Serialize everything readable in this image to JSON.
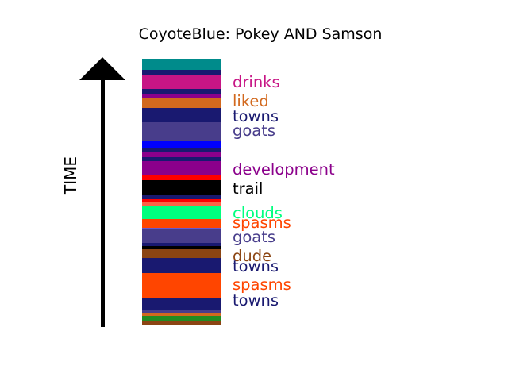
{
  "chart_data": {
    "type": "bar",
    "orientation": "vertical-stacked-timeline",
    "title": "CoyoteBlue: Pokey AND Samson",
    "ylabel": "TIME",
    "ylim": [
      0,
      336
    ],
    "segments": [
      {
        "start": 0,
        "end": 6,
        "color": "#8b4513"
      },
      {
        "start": 6,
        "end": 12,
        "color": "#228b22"
      },
      {
        "start": 12,
        "end": 16,
        "color": "#d2691e"
      },
      {
        "start": 16,
        "end": 19,
        "color": "#483d8b"
      },
      {
        "start": 19,
        "end": 23,
        "color": "#191970"
      },
      {
        "start": 23,
        "end": 35,
        "color": "#191970"
      },
      {
        "start": 35,
        "end": 66,
        "color": "#ff4500"
      },
      {
        "start": 66,
        "end": 74,
        "color": "#191970"
      },
      {
        "start": 74,
        "end": 85,
        "color": "#191970"
      },
      {
        "start": 85,
        "end": 89,
        "color": "#8b4513"
      },
      {
        "start": 89,
        "end": 96,
        "color": "#8b4513"
      },
      {
        "start": 96,
        "end": 100,
        "color": "#000000"
      },
      {
        "start": 100,
        "end": 104,
        "color": "#191970"
      },
      {
        "start": 104,
        "end": 121,
        "color": "#483d8b"
      },
      {
        "start": 121,
        "end": 123,
        "color": "#6a5acd"
      },
      {
        "start": 123,
        "end": 134,
        "color": "#ff4500"
      },
      {
        "start": 134,
        "end": 151,
        "color": "#00ff7f"
      },
      {
        "start": 151,
        "end": 155,
        "color": "#ff6347"
      },
      {
        "start": 155,
        "end": 159,
        "color": "#ff0000"
      },
      {
        "start": 159,
        "end": 164,
        "color": "#191970"
      },
      {
        "start": 164,
        "end": 183,
        "color": "#000000"
      },
      {
        "start": 183,
        "end": 189,
        "color": "#ff0000"
      },
      {
        "start": 189,
        "end": 207,
        "color": "#8b008b"
      },
      {
        "start": 207,
        "end": 212,
        "color": "#191970"
      },
      {
        "start": 212,
        "end": 218,
        "color": "#8b008b"
      },
      {
        "start": 218,
        "end": 224,
        "color": "#191970"
      },
      {
        "start": 224,
        "end": 232,
        "color": "#0000ff"
      },
      {
        "start": 232,
        "end": 256,
        "color": "#483d8b"
      },
      {
        "start": 256,
        "end": 274,
        "color": "#191970"
      },
      {
        "start": 274,
        "end": 286,
        "color": "#d2691e"
      },
      {
        "start": 286,
        "end": 292,
        "color": "#8b008b"
      },
      {
        "start": 292,
        "end": 298,
        "color": "#191970"
      },
      {
        "start": 298,
        "end": 316,
        "color": "#c71585"
      },
      {
        "start": 316,
        "end": 322,
        "color": "#191970"
      },
      {
        "start": 322,
        "end": 336,
        "color": "#008b8b"
      }
    ],
    "labels": [
      {
        "text": "drinks",
        "value": 307,
        "color": "#c71585"
      },
      {
        "text": "liked",
        "value": 283,
        "color": "#d2691e"
      },
      {
        "text": "towns",
        "value": 264,
        "color": "#191970"
      },
      {
        "text": "goats",
        "value": 246,
        "color": "#483d8b"
      },
      {
        "text": "development",
        "value": 197,
        "color": "#8b008b"
      },
      {
        "text": "trail",
        "value": 173,
        "color": "#000000"
      },
      {
        "text": "clouds",
        "value": 142,
        "color": "#00ff7f"
      },
      {
        "text": "spasms",
        "value": 130,
        "color": "#ff4500"
      },
      {
        "text": "goats",
        "value": 112,
        "color": "#483d8b"
      },
      {
        "text": "dude",
        "value": 88,
        "color": "#8b4513"
      },
      {
        "text": "towns",
        "value": 75,
        "color": "#191970"
      },
      {
        "text": "spasms",
        "value": 52,
        "color": "#ff4500"
      },
      {
        "text": "towns",
        "value": 32,
        "color": "#191970"
      }
    ]
  }
}
